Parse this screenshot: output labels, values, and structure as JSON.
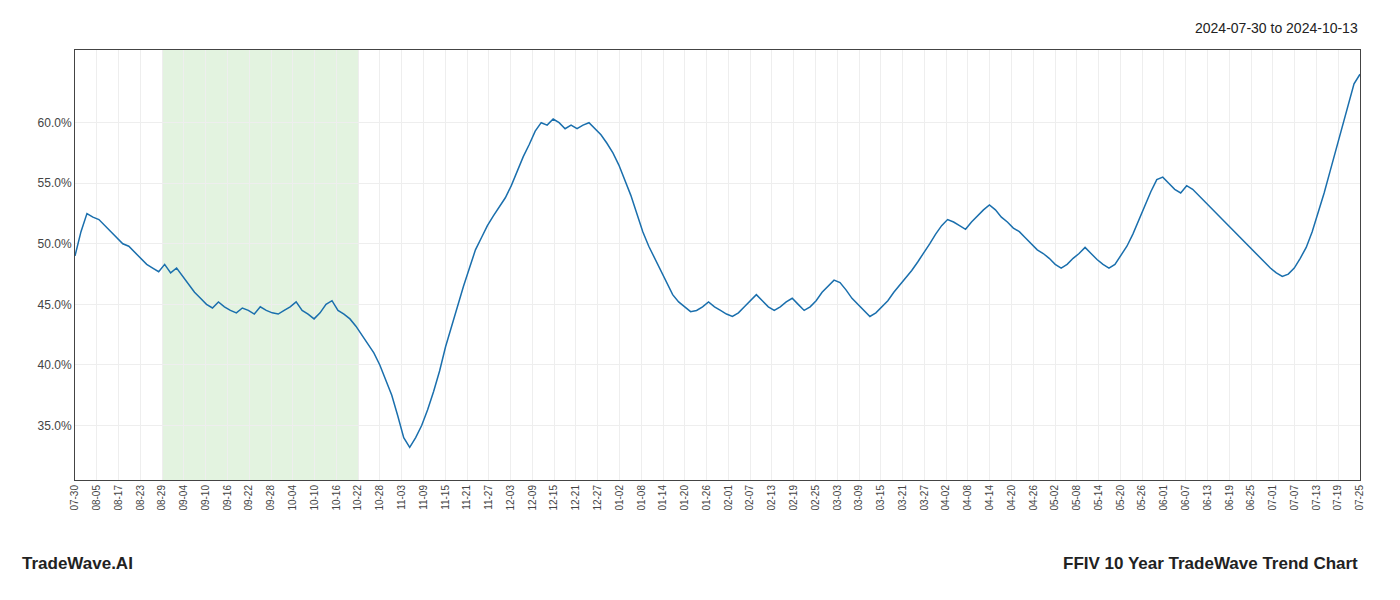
{
  "chart_data": {
    "type": "line",
    "title": "FFIV 10 Year TradeWave Trend Chart",
    "subtitle": "2024-07-30 to 2024-10-13",
    "annotations": [
      "TradeWave.AI"
    ],
    "color": "#1a6fad",
    "grid": true,
    "ylim": [
      0.305,
      0.66
    ],
    "yticks": [
      {
        "value": 0.35,
        "label": "35.0%"
      },
      {
        "value": 0.4,
        "label": "40.0%"
      },
      {
        "value": 0.45,
        "label": "45.0%"
      },
      {
        "value": 0.5,
        "label": "50.0%"
      },
      {
        "value": 0.55,
        "label": "55.0%"
      },
      {
        "value": 0.6,
        "label": "60.0%"
      }
    ],
    "xlim": [
      0,
      215
    ],
    "xticks": [
      {
        "value": 0,
        "label": "07-30"
      },
      {
        "value": 3.64,
        "label": "08-05"
      },
      {
        "value": 7.29,
        "label": "08-17"
      },
      {
        "value": 10.93,
        "label": "08-23"
      },
      {
        "value": 14.58,
        "label": "08-29"
      },
      {
        "value": 18.22,
        "label": "09-04"
      },
      {
        "value": 21.86,
        "label": "09-10"
      },
      {
        "value": 25.51,
        "label": "09-16"
      },
      {
        "value": 29.15,
        "label": "09-22"
      },
      {
        "value": 32.8,
        "label": "09-28"
      },
      {
        "value": 36.44,
        "label": "10-04"
      },
      {
        "value": 40.08,
        "label": "10-10"
      },
      {
        "value": 43.73,
        "label": "10-16"
      },
      {
        "value": 47.37,
        "label": "10-22"
      },
      {
        "value": 51.02,
        "label": "10-28"
      },
      {
        "value": 54.66,
        "label": "11-03"
      },
      {
        "value": 58.31,
        "label": "11-09"
      },
      {
        "value": 61.95,
        "label": "11-15"
      },
      {
        "value": 65.59,
        "label": "11-21"
      },
      {
        "value": 69.24,
        "label": "11-27"
      },
      {
        "value": 72.88,
        "label": "12-03"
      },
      {
        "value": 76.53,
        "label": "12-09"
      },
      {
        "value": 80.17,
        "label": "12-15"
      },
      {
        "value": 83.81,
        "label": "12-21"
      },
      {
        "value": 87.46,
        "label": "12-27"
      },
      {
        "value": 91.1,
        "label": "01-02"
      },
      {
        "value": 94.75,
        "label": "01-08"
      },
      {
        "value": 98.39,
        "label": "01-14"
      },
      {
        "value": 102.03,
        "label": "01-20"
      },
      {
        "value": 105.68,
        "label": "01-26"
      },
      {
        "value": 109.32,
        "label": "02-01"
      },
      {
        "value": 112.97,
        "label": "02-07"
      },
      {
        "value": 116.61,
        "label": "02-13"
      },
      {
        "value": 120.25,
        "label": "02-19"
      },
      {
        "value": 123.9,
        "label": "02-25"
      },
      {
        "value": 127.54,
        "label": "03-03"
      },
      {
        "value": 131.19,
        "label": "03-09"
      },
      {
        "value": 134.83,
        "label": "03-15"
      },
      {
        "value": 138.47,
        "label": "03-21"
      },
      {
        "value": 142.12,
        "label": "03-27"
      },
      {
        "value": 145.76,
        "label": "04-02"
      },
      {
        "value": 149.41,
        "label": "04-08"
      },
      {
        "value": 153.05,
        "label": "04-14"
      },
      {
        "value": 156.69,
        "label": "04-20"
      },
      {
        "value": 160.34,
        "label": "04-26"
      },
      {
        "value": 163.98,
        "label": "05-02"
      },
      {
        "value": 167.63,
        "label": "05-08"
      },
      {
        "value": 171.27,
        "label": "05-14"
      },
      {
        "value": 174.92,
        "label": "05-20"
      },
      {
        "value": 178.56,
        "label": "05-26"
      },
      {
        "value": 182.2,
        "label": "06-01"
      },
      {
        "value": 185.85,
        "label": "06-07"
      },
      {
        "value": 189.49,
        "label": "06-13"
      },
      {
        "value": 193.14,
        "label": "06-19"
      },
      {
        "value": 196.78,
        "label": "06-25"
      },
      {
        "value": 200.42,
        "label": "07-01"
      },
      {
        "value": 204.07,
        "label": "07-07"
      },
      {
        "value": 207.71,
        "label": "07-13"
      },
      {
        "value": 211.36,
        "label": "07-19"
      },
      {
        "value": 215,
        "label": "07-25"
      }
    ],
    "shade": {
      "start": "08-29",
      "end": "10-22",
      "color": "#d4ecd0"
    },
    "values": [
      0.49,
      0.51,
      0.525,
      0.522,
      0.52,
      0.515,
      0.51,
      0.505,
      0.5,
      0.498,
      0.493,
      0.488,
      0.483,
      0.48,
      0.477,
      0.483,
      0.476,
      0.48,
      0.473,
      0.467,
      0.46,
      0.455,
      0.45,
      0.447,
      0.452,
      0.448,
      0.445,
      0.443,
      0.447,
      0.445,
      0.442,
      0.448,
      0.445,
      0.443,
      0.442,
      0.445,
      0.448,
      0.452,
      0.445,
      0.442,
      0.438,
      0.443,
      0.45,
      0.453,
      0.445,
      0.442,
      0.438,
      0.432,
      0.425,
      0.418,
      0.41,
      0.4,
      0.388,
      0.375,
      0.358,
      0.34,
      0.332,
      0.34,
      0.35,
      0.363,
      0.378,
      0.395,
      0.415,
      0.432,
      0.45,
      0.465,
      0.48,
      0.495,
      0.505,
      0.515,
      0.523,
      0.53,
      0.538,
      0.548,
      0.56,
      0.572,
      0.582,
      0.593,
      0.6,
      0.598,
      0.603,
      0.6,
      0.595,
      0.598,
      0.595,
      0.598,
      0.6,
      0.595,
      0.59,
      0.583,
      0.575,
      0.565,
      0.552,
      0.54,
      0.525,
      0.51,
      0.498,
      0.488,
      0.478,
      0.468,
      0.458,
      0.452,
      0.448,
      0.444,
      0.445,
      0.448,
      0.452,
      0.448,
      0.445,
      0.442,
      0.44,
      0.443,
      0.448,
      0.453,
      0.458,
      0.453,
      0.448,
      0.445,
      0.448,
      0.452,
      0.455,
      0.45,
      0.445,
      0.448,
      0.453,
      0.46,
      0.465,
      0.47,
      0.468,
      0.462,
      0.455,
      0.45,
      0.445,
      0.44,
      0.443,
      0.448,
      0.453,
      0.46,
      0.466,
      0.472,
      0.478,
      0.485,
      0.492,
      0.5,
      0.508,
      0.515,
      0.52,
      0.518,
      0.515,
      0.512,
      0.518,
      0.523,
      0.528,
      0.532,
      0.528,
      0.522,
      0.518,
      0.513,
      0.51,
      0.505,
      0.5,
      0.495,
      0.492,
      0.488,
      0.483,
      0.48,
      0.483,
      0.488,
      0.492,
      0.497,
      0.492,
      0.487,
      0.483,
      0.48,
      0.483,
      0.49,
      0.498,
      0.508,
      0.52,
      0.532,
      0.543,
      0.553,
      0.555,
      0.55,
      0.545,
      0.542,
      0.548,
      0.545,
      0.54,
      0.535,
      0.53,
      0.525,
      0.52,
      0.515,
      0.51,
      0.505,
      0.5,
      0.495,
      0.49,
      0.485,
      0.48,
      0.476,
      0.473,
      0.475,
      0.48,
      0.488,
      0.497,
      0.51,
      0.525,
      0.542,
      0.56,
      0.578,
      0.598,
      0.615,
      0.632,
      0.64
    ]
  }
}
